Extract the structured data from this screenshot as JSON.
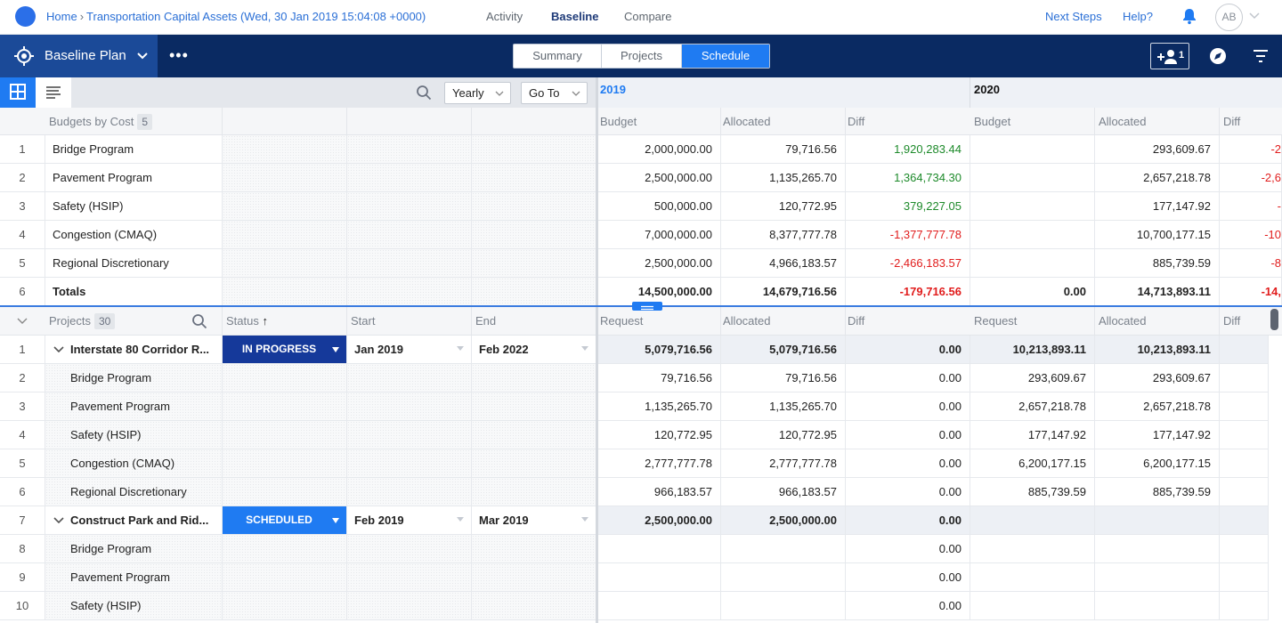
{
  "topbar": {
    "home": "Home",
    "project": "Transportation Capital Assets (Wed, 30 Jan 2019 15:04:08 +0000)",
    "nav": [
      "Activity",
      "Baseline",
      "Compare"
    ],
    "next_steps": "Next Steps",
    "help": "Help?",
    "avatar": "AB"
  },
  "navbar": {
    "plan_label": "Baseline Plan",
    "tabs": [
      "Summary",
      "Projects",
      "Schedule"
    ],
    "active_tab": "Schedule",
    "more": "•••",
    "adduser_count": "1"
  },
  "toolbar": {
    "period_select": "Yearly",
    "goto_select": "Go To"
  },
  "years": [
    "2019",
    "2020"
  ],
  "budgets": {
    "title": "Budgets by Cost",
    "count": "5",
    "col_headers": [
      "Budget",
      "Allocated",
      "Diff"
    ],
    "rows": [
      {
        "n": "1",
        "name": "Bridge Program",
        "b19": "2,000,000.00",
        "a19": "79,716.56",
        "d19": "1,920,283.44",
        "a20": "293,609.67",
        "d20": "-2"
      },
      {
        "n": "2",
        "name": "Pavement Program",
        "b19": "2,500,000.00",
        "a19": "1,135,265.70",
        "d19": "1,364,734.30",
        "a20": "2,657,218.78",
        "d20": "-2,6"
      },
      {
        "n": "3",
        "name": "Safety (HSIP)",
        "b19": "500,000.00",
        "a19": "120,772.95",
        "d19": "379,227.05",
        "a20": "177,147.92",
        "d20": "-"
      },
      {
        "n": "4",
        "name": "Congestion (CMAQ)",
        "b19": "7,000,000.00",
        "a19": "8,377,777.78",
        "d19": "-1,377,777.78",
        "a20": "10,700,177.15",
        "d20": "-10"
      },
      {
        "n": "5",
        "name": "Regional Discretionary",
        "b19": "2,500,000.00",
        "a19": "4,966,183.57",
        "d19": "-2,466,183.57",
        "a20": "885,739.59",
        "d20": "-8"
      },
      {
        "n": "6",
        "name": "Totals",
        "b19": "14,500,000.00",
        "a19": "14,679,716.56",
        "d19": "-179,716.56",
        "b20": "0.00",
        "a20": "14,713,893.11",
        "d20": "-14,"
      }
    ]
  },
  "projects": {
    "title": "Projects",
    "count": "30",
    "col_status": "Status",
    "col_start": "Start",
    "col_end": "End",
    "val_headers": [
      "Request",
      "Allocated",
      "Diff"
    ],
    "rows": [
      {
        "n": "1",
        "name": "Interstate 80 Corridor R...",
        "parent": true,
        "status": "IN PROGRESS",
        "start": "Jan 2019",
        "end": "Feb 2022",
        "r19": "5,079,716.56",
        "a19": "5,079,716.56",
        "d19": "0.00",
        "r20": "10,213,893.11",
        "a20": "10,213,893.11"
      },
      {
        "n": "2",
        "name": "Bridge Program",
        "r19": "79,716.56",
        "a19": "79,716.56",
        "d19": "0.00",
        "r20": "293,609.67",
        "a20": "293,609.67"
      },
      {
        "n": "3",
        "name": "Pavement Program",
        "r19": "1,135,265.70",
        "a19": "1,135,265.70",
        "d19": "0.00",
        "r20": "2,657,218.78",
        "a20": "2,657,218.78"
      },
      {
        "n": "4",
        "name": "Safety (HSIP)",
        "r19": "120,772.95",
        "a19": "120,772.95",
        "d19": "0.00",
        "r20": "177,147.92",
        "a20": "177,147.92"
      },
      {
        "n": "5",
        "name": "Congestion (CMAQ)",
        "r19": "2,777,777.78",
        "a19": "2,777,777.78",
        "d19": "0.00",
        "r20": "6,200,177.15",
        "a20": "6,200,177.15"
      },
      {
        "n": "6",
        "name": "Regional Discretionary",
        "r19": "966,183.57",
        "a19": "966,183.57",
        "d19": "0.00",
        "r20": "885,739.59",
        "a20": "885,739.59"
      },
      {
        "n": "7",
        "name": "Construct Park and Rid...",
        "parent": true,
        "status": "SCHEDULED",
        "start": "Feb 2019",
        "end": "Mar 2019",
        "r19": "2,500,000.00",
        "a19": "2,500,000.00",
        "d19": "0.00"
      },
      {
        "n": "8",
        "name": "Bridge Program",
        "d19": "0.00"
      },
      {
        "n": "9",
        "name": "Pavement Program",
        "d19": "0.00"
      },
      {
        "n": "10",
        "name": "Safety (HSIP)",
        "d19": "0.00"
      }
    ]
  },
  "colors": {
    "accent": "#1f7bf2",
    "navy": "#0a2a62",
    "in_progress": "#15399a",
    "scheduled": "#1f7bf2",
    "positive": "#1d8a2a",
    "negative": "#e11d1d"
  }
}
